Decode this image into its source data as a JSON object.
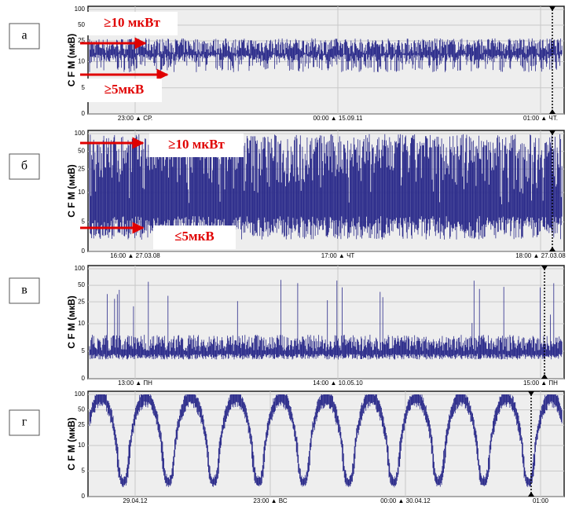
{
  "panels": [
    {
      "label": "а",
      "ylabel": "C F M (мкВ)",
      "yticks": [
        0,
        5,
        10,
        25,
        50,
        100
      ],
      "ylim": [
        0,
        100
      ],
      "time_labels": [
        "23:00 ▲ СР.",
        "00:00 ▲ 15.09.11",
        "01:00 ▲ ЧТ."
      ],
      "annotations": [
        "≥10 мкВт",
        "≥5мкВ"
      ]
    },
    {
      "label": "б",
      "ylabel": "C F M (мкВ)",
      "yticks": [
        0,
        5,
        10,
        25,
        50,
        100
      ],
      "ylim": [
        0,
        100
      ],
      "time_labels": [
        "16:00 ▲ 27.03.08",
        "17:00 ▲ ЧТ",
        "18:00 ▲ 27.03.08"
      ],
      "annotations": [
        "≥10 мкВт",
        "≤5мкВ"
      ]
    },
    {
      "label": "в",
      "ylabel": "C F M (мкВ)",
      "yticks": [
        0,
        5,
        10,
        25,
        50,
        100
      ],
      "ylim": [
        0,
        100
      ],
      "time_labels": [
        "13:00 ▲ ПН",
        "14:00 ▲ 10.05.10",
        "15:00 ▲ ПН"
      ],
      "annotations": []
    },
    {
      "label": "г",
      "ylabel": "C F M (мкВ)",
      "yticks": [
        0,
        5,
        10,
        25,
        50,
        100
      ],
      "ylim": [
        0,
        100
      ],
      "time_labels": [
        "29.04.12",
        "23:00 ▲ ВС",
        "00:00 ▲ 30.04.12",
        "01:00"
      ],
      "annotations": []
    }
  ]
}
